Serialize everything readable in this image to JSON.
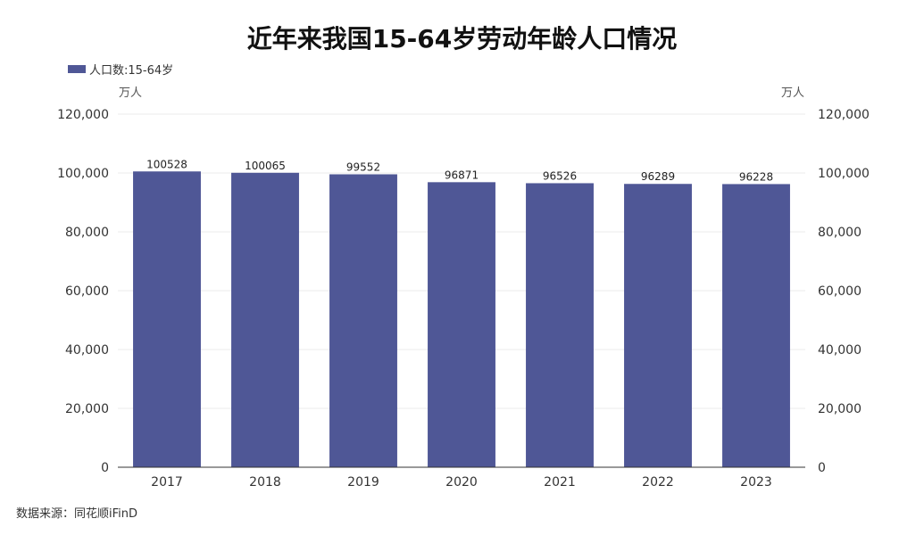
{
  "chart_data": {
    "type": "bar",
    "title": "近年来我国15-64岁劳动年龄人口情况",
    "categories": [
      "2017",
      "2018",
      "2019",
      "2020",
      "2021",
      "2022",
      "2023"
    ],
    "series": [
      {
        "name": "人口数:15-64岁",
        "values": [
          100528,
          100065,
          99552,
          96871,
          96526,
          96289,
          96228
        ],
        "color": "#4f5796"
      }
    ],
    "ylim": [
      0,
      120000
    ],
    "yticks": [
      0,
      20000,
      40000,
      60000,
      80000,
      100000,
      120000
    ],
    "ytick_labels": [
      "0",
      "20,000",
      "40,000",
      "60,000",
      "80,000",
      "100,000",
      "120,000"
    ],
    "ylabel_left": "万人",
    "ylabel_right": "万人",
    "xlabel": "",
    "legend": "top-left",
    "grid": true
  },
  "source": "数据来源：同花顺iFinD",
  "colors": {
    "bar": "#4f5796",
    "grid": "#ebebeb",
    "axis": "#333333"
  }
}
